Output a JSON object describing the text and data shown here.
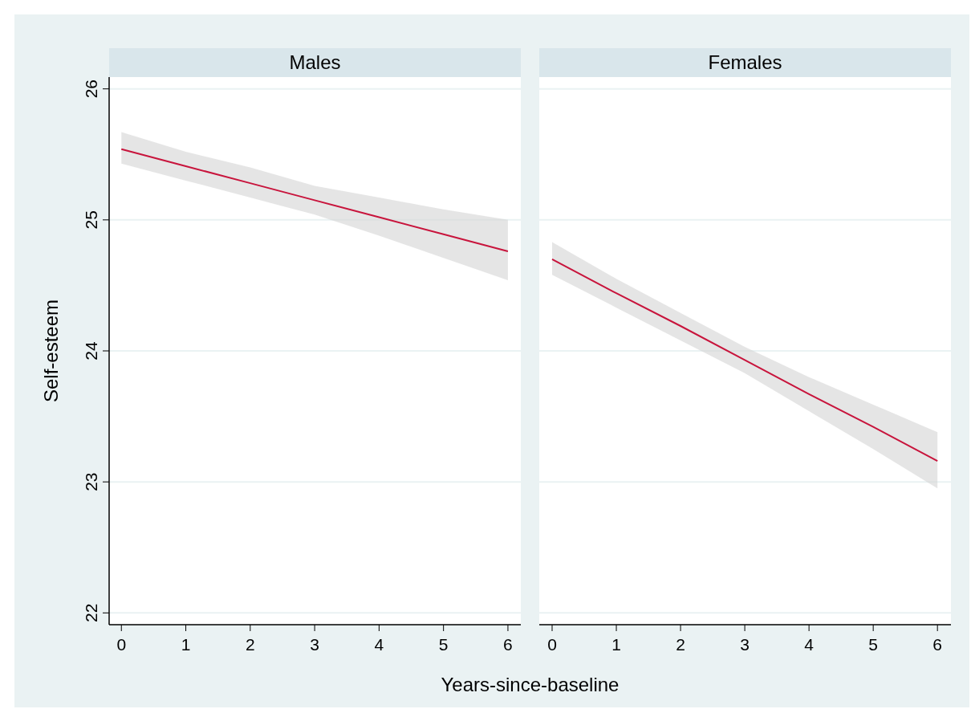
{
  "chart_data": [
    {
      "type": "line",
      "title": "Males",
      "ylabel": "Self-esteem",
      "xlabel": "Years-since-baseline",
      "x": [
        0,
        1,
        2,
        3,
        4,
        5,
        6
      ],
      "series": [
        {
          "color": "#c8143c",
          "values": [
            25.54,
            25.41,
            25.28,
            25.15,
            25.02,
            24.89,
            24.76
          ],
          "lower": [
            25.43,
            25.3,
            25.17,
            25.04,
            24.88,
            24.71,
            24.54
          ],
          "upper": [
            25.67,
            25.52,
            25.4,
            25.26,
            25.17,
            25.08,
            25.0
          ]
        }
      ],
      "xlim": [
        -0.19,
        6.2
      ],
      "xticks": [
        0,
        1,
        2,
        3,
        4,
        5,
        6
      ],
      "ylim": [
        21.91,
        26.09
      ],
      "yticks": [
        22,
        23,
        24,
        25,
        26
      ],
      "grid": "y",
      "marker": "none"
    },
    {
      "type": "line",
      "title": "Females",
      "x": [
        0,
        1,
        2,
        3,
        4,
        5,
        6
      ],
      "series": [
        {
          "color": "#c8143c",
          "values": [
            24.7,
            24.44,
            24.19,
            23.93,
            23.67,
            23.42,
            23.16
          ],
          "lower": [
            24.58,
            24.33,
            24.08,
            23.83,
            23.54,
            23.25,
            22.95
          ],
          "upper": [
            24.83,
            24.55,
            24.29,
            24.03,
            23.8,
            23.59,
            23.38
          ]
        }
      ],
      "xlim": [
        -0.2,
        6.21
      ],
      "xticks": [
        0,
        1,
        2,
        3,
        4,
        5,
        6
      ],
      "ylim": [
        21.91,
        26.09
      ],
      "yticks": [
        22,
        23,
        24,
        25,
        26
      ],
      "grid": "y",
      "marker": "none",
      "tick_labels": "x"
    }
  ]
}
